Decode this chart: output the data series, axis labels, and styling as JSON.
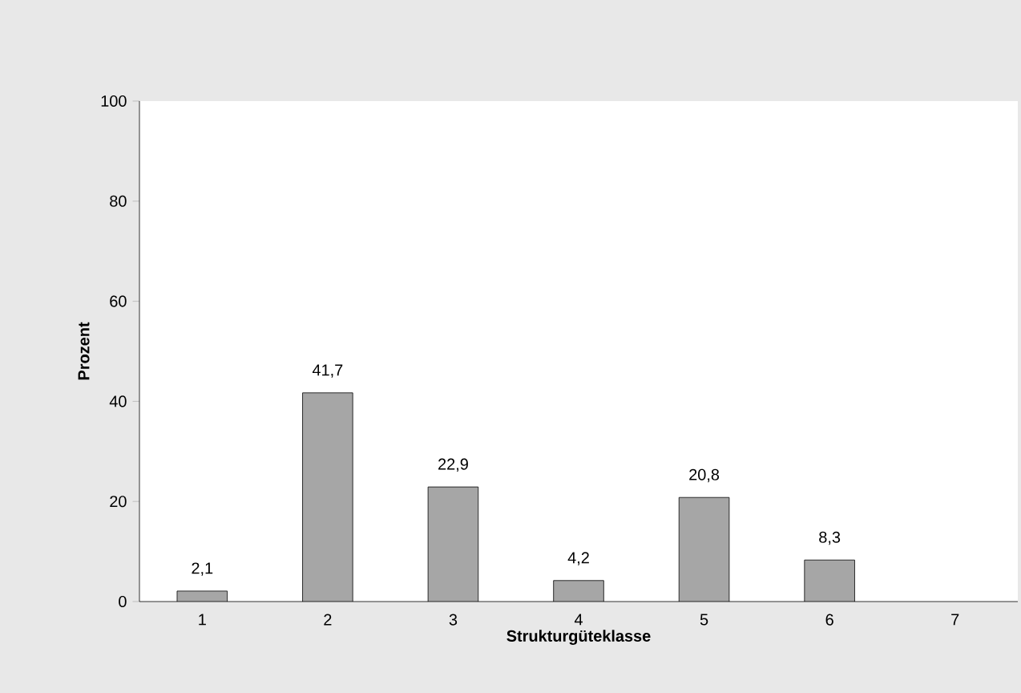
{
  "chart_data": {
    "type": "bar",
    "xlabel": "Strukturgüteklasse",
    "ylabel": "Prozent",
    "categories": [
      "1",
      "2",
      "3",
      "4",
      "5",
      "6",
      "7"
    ],
    "values": [
      2.1,
      41.7,
      22.9,
      4.2,
      20.8,
      8.3,
      null
    ],
    "value_labels": [
      "2,1",
      "41,7",
      "22,9",
      "4,2",
      "20,8",
      "8,3",
      null
    ],
    "color": "#a6a6a6",
    "ylim": [
      0,
      100
    ],
    "yticks": [
      0,
      20,
      40,
      60,
      80,
      100
    ]
  }
}
